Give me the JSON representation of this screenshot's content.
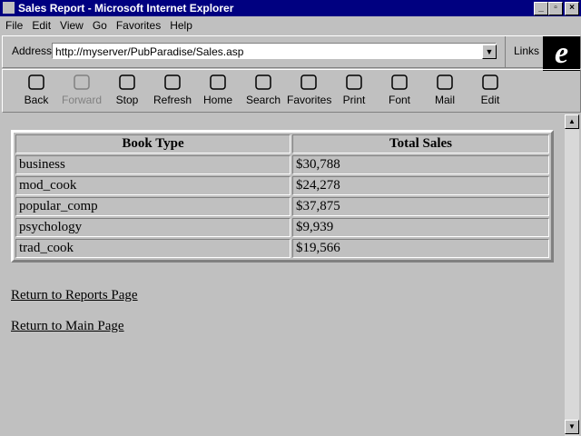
{
  "window": {
    "title": "Sales Report - Microsoft Internet Explorer"
  },
  "menu": [
    "File",
    "Edit",
    "View",
    "Go",
    "Favorites",
    "Help"
  ],
  "address": {
    "label": "Address",
    "url": "http://myserver/PubParadise/Sales.asp",
    "links": "Links"
  },
  "toolbar": [
    "Back",
    "Forward",
    "Stop",
    "Refresh",
    "Home",
    "Search",
    "Favorites",
    "Print",
    "Font",
    "Mail",
    "Edit"
  ],
  "table": {
    "header": [
      "Book Type",
      "Total Sales"
    ],
    "rows": [
      [
        "business",
        "$30,788"
      ],
      [
        "mod_cook",
        "$24,278"
      ],
      [
        "popular_comp",
        "$37,875"
      ],
      [
        "psychology",
        "$9,939"
      ],
      [
        "trad_cook",
        "$19,566"
      ]
    ]
  },
  "links": [
    "Return to Reports Page",
    "Return to Main Page"
  ]
}
